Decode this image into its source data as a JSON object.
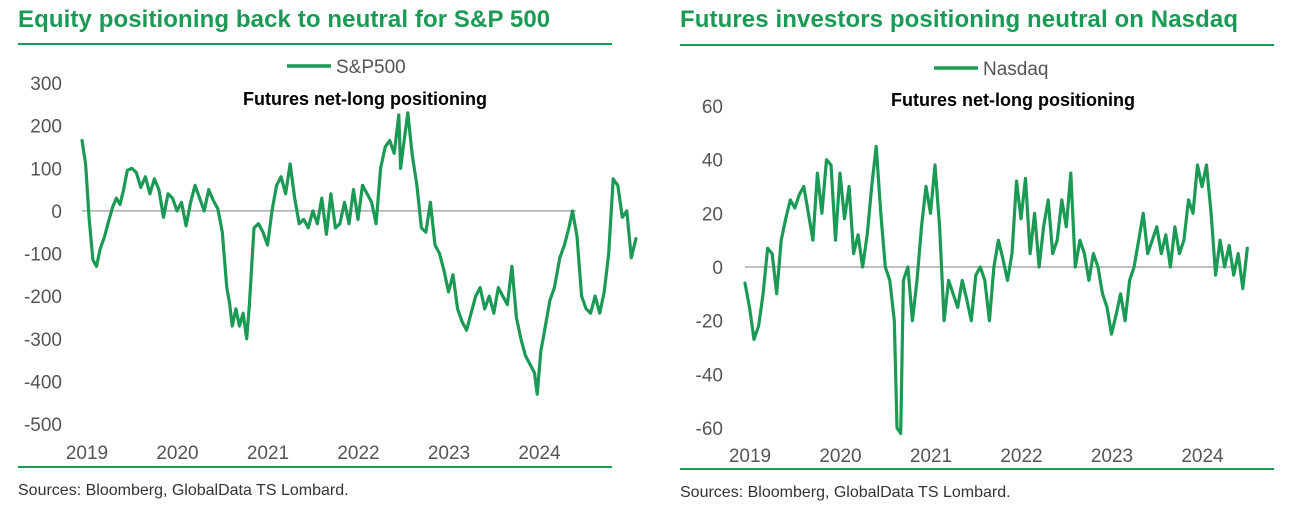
{
  "chart_data": [
    {
      "type": "line",
      "title": "Equity positioning back to neutral for S&P 500",
      "subtitle": "Futures net-long positioning",
      "legend": "top-center",
      "series": [
        {
          "name": "S&P500",
          "color": "#1b9a55",
          "points": [
            [
              2019.0,
              165
            ],
            [
              2019.04,
              110
            ],
            [
              2019.08,
              -20
            ],
            [
              2019.12,
              -115
            ],
            [
              2019.16,
              -130
            ],
            [
              2019.2,
              -90
            ],
            [
              2019.25,
              -60
            ],
            [
              2019.3,
              -20
            ],
            [
              2019.34,
              10
            ],
            [
              2019.38,
              30
            ],
            [
              2019.42,
              15
            ],
            [
              2019.46,
              50
            ],
            [
              2019.5,
              95
            ],
            [
              2019.55,
              100
            ],
            [
              2019.6,
              90
            ],
            [
              2019.65,
              55
            ],
            [
              2019.7,
              80
            ],
            [
              2019.75,
              40
            ],
            [
              2019.8,
              75
            ],
            [
              2019.85,
              50
            ],
            [
              2019.9,
              -15
            ],
            [
              2019.95,
              40
            ],
            [
              2020.0,
              30
            ],
            [
              2020.05,
              0
            ],
            [
              2020.1,
              20
            ],
            [
              2020.15,
              -35
            ],
            [
              2020.2,
              20
            ],
            [
              2020.25,
              60
            ],
            [
              2020.3,
              30
            ],
            [
              2020.35,
              0
            ],
            [
              2020.4,
              50
            ],
            [
              2020.45,
              25
            ],
            [
              2020.5,
              5
            ],
            [
              2020.55,
              -50
            ],
            [
              2020.6,
              -180
            ],
            [
              2020.63,
              -215
            ],
            [
              2020.66,
              -270
            ],
            [
              2020.7,
              -230
            ],
            [
              2020.74,
              -270
            ],
            [
              2020.78,
              -240
            ],
            [
              2020.82,
              -300
            ],
            [
              2020.85,
              -220
            ],
            [
              2020.9,
              -40
            ],
            [
              2020.95,
              -30
            ],
            [
              2021.0,
              -50
            ],
            [
              2021.05,
              -80
            ],
            [
              2021.1,
              0
            ],
            [
              2021.15,
              60
            ],
            [
              2021.2,
              80
            ],
            [
              2021.25,
              40
            ],
            [
              2021.3,
              110
            ],
            [
              2021.35,
              30
            ],
            [
              2021.4,
              -30
            ],
            [
              2021.45,
              -20
            ],
            [
              2021.5,
              -40
            ],
            [
              2021.55,
              0
            ],
            [
              2021.6,
              -30
            ],
            [
              2021.65,
              30
            ],
            [
              2021.7,
              -55
            ],
            [
              2021.75,
              40
            ],
            [
              2021.8,
              -40
            ],
            [
              2021.85,
              -30
            ],
            [
              2021.9,
              20
            ],
            [
              2021.95,
              -30
            ],
            [
              2022.0,
              50
            ],
            [
              2022.05,
              -20
            ],
            [
              2022.1,
              60
            ],
            [
              2022.15,
              40
            ],
            [
              2022.2,
              20
            ],
            [
              2022.25,
              -30
            ],
            [
              2022.3,
              100
            ],
            [
              2022.35,
              150
            ],
            [
              2022.4,
              165
            ],
            [
              2022.45,
              135
            ],
            [
              2022.5,
              225
            ],
            [
              2022.52,
              100
            ],
            [
              2022.55,
              150
            ],
            [
              2022.6,
              230
            ],
            [
              2022.65,
              130
            ],
            [
              2022.7,
              60
            ],
            [
              2022.75,
              -40
            ],
            [
              2022.8,
              -50
            ],
            [
              2022.85,
              20
            ],
            [
              2022.9,
              -80
            ],
            [
              2022.95,
              -100
            ],
            [
              2023.0,
              -140
            ],
            [
              2023.05,
              -190
            ],
            [
              2023.1,
              -150
            ],
            [
              2023.15,
              -230
            ],
            [
              2023.2,
              -260
            ],
            [
              2023.25,
              -280
            ],
            [
              2023.3,
              -240
            ],
            [
              2023.35,
              -200
            ],
            [
              2023.4,
              -180
            ],
            [
              2023.45,
              -230
            ],
            [
              2023.5,
              -200
            ],
            [
              2023.55,
              -240
            ],
            [
              2023.6,
              -180
            ],
            [
              2023.65,
              -200
            ],
            [
              2023.7,
              -220
            ],
            [
              2023.75,
              -130
            ],
            [
              2023.8,
              -250
            ],
            [
              2023.85,
              -300
            ],
            [
              2023.9,
              -340
            ],
            [
              2023.95,
              -360
            ],
            [
              2024.0,
              -380
            ],
            [
              2024.03,
              -430
            ],
            [
              2024.07,
              -330
            ],
            [
              2024.12,
              -270
            ],
            [
              2024.17,
              -210
            ],
            [
              2024.22,
              -180
            ],
            [
              2024.28,
              -110
            ],
            [
              2024.33,
              -80
            ],
            [
              2024.38,
              -40
            ],
            [
              2024.42,
              0
            ],
            [
              2024.47,
              -60
            ],
            [
              2024.52,
              -200
            ],
            [
              2024.57,
              -230
            ],
            [
              2024.62,
              -240
            ],
            [
              2024.67,
              -200
            ],
            [
              2024.72,
              -240
            ],
            [
              2024.77,
              -190
            ],
            [
              2024.82,
              -100
            ],
            [
              2024.87,
              75
            ],
            [
              2024.92,
              60
            ],
            [
              2024.97,
              -15
            ],
            [
              2025.02,
              0
            ],
            [
              2025.07,
              -110
            ],
            [
              2025.12,
              -65
            ]
          ]
        }
      ],
      "x_ticks": [
        "2019",
        "2020",
        "2021",
        "2022",
        "2023",
        "2024"
      ],
      "y_ticks": [
        300,
        200,
        100,
        0,
        -100,
        -200,
        -300,
        -400,
        -500
      ],
      "ylim": [
        -500,
        300
      ],
      "source": "Sources: Bloomberg, GlobalData TS Lombard."
    },
    {
      "type": "line",
      "title": "Futures investors positioning neutral on Nasdaq",
      "subtitle": "Futures net-long positioning",
      "legend": "top-center",
      "series": [
        {
          "name": "Nasdaq",
          "color": "#1b9a55",
          "points": [
            [
              2019.0,
              -6
            ],
            [
              2019.05,
              -15
            ],
            [
              2019.1,
              -27
            ],
            [
              2019.15,
              -22
            ],
            [
              2019.2,
              -10
            ],
            [
              2019.25,
              7
            ],
            [
              2019.3,
              5
            ],
            [
              2019.35,
              -10
            ],
            [
              2019.4,
              10
            ],
            [
              2019.45,
              18
            ],
            [
              2019.5,
              25
            ],
            [
              2019.55,
              22
            ],
            [
              2019.6,
              27
            ],
            [
              2019.65,
              30
            ],
            [
              2019.7,
              20
            ],
            [
              2019.75,
              10
            ],
            [
              2019.8,
              35
            ],
            [
              2019.85,
              20
            ],
            [
              2019.9,
              40
            ],
            [
              2019.95,
              38
            ],
            [
              2020.0,
              10
            ],
            [
              2020.05,
              35
            ],
            [
              2020.1,
              18
            ],
            [
              2020.15,
              30
            ],
            [
              2020.2,
              5
            ],
            [
              2020.25,
              12
            ],
            [
              2020.3,
              0
            ],
            [
              2020.35,
              12
            ],
            [
              2020.4,
              30
            ],
            [
              2020.45,
              45
            ],
            [
              2020.5,
              20
            ],
            [
              2020.55,
              0
            ],
            [
              2020.6,
              -5
            ],
            [
              2020.65,
              -20
            ],
            [
              2020.68,
              -60
            ],
            [
              2020.72,
              -62
            ],
            [
              2020.75,
              -5
            ],
            [
              2020.8,
              0
            ],
            [
              2020.85,
              -20
            ],
            [
              2020.9,
              -5
            ],
            [
              2020.95,
              15
            ],
            [
              2021.0,
              30
            ],
            [
              2021.05,
              20
            ],
            [
              2021.1,
              38
            ],
            [
              2021.15,
              15
            ],
            [
              2021.2,
              -20
            ],
            [
              2021.25,
              -5
            ],
            [
              2021.3,
              -10
            ],
            [
              2021.35,
              -15
            ],
            [
              2021.4,
              -5
            ],
            [
              2021.45,
              -12
            ],
            [
              2021.5,
              -20
            ],
            [
              2021.55,
              -3
            ],
            [
              2021.6,
              0
            ],
            [
              2021.65,
              -5
            ],
            [
              2021.7,
              -20
            ],
            [
              2021.75,
              0
            ],
            [
              2021.8,
              10
            ],
            [
              2021.85,
              3
            ],
            [
              2021.9,
              -5
            ],
            [
              2021.95,
              5
            ],
            [
              2022.0,
              32
            ],
            [
              2022.05,
              18
            ],
            [
              2022.1,
              33
            ],
            [
              2022.15,
              5
            ],
            [
              2022.2,
              20
            ],
            [
              2022.25,
              0
            ],
            [
              2022.3,
              15
            ],
            [
              2022.35,
              25
            ],
            [
              2022.4,
              5
            ],
            [
              2022.45,
              10
            ],
            [
              2022.5,
              25
            ],
            [
              2022.55,
              15
            ],
            [
              2022.6,
              35
            ],
            [
              2022.65,
              0
            ],
            [
              2022.7,
              10
            ],
            [
              2022.75,
              5
            ],
            [
              2022.8,
              -5
            ],
            [
              2022.85,
              5
            ],
            [
              2022.9,
              0
            ],
            [
              2022.95,
              -10
            ],
            [
              2023.0,
              -15
            ],
            [
              2023.05,
              -25
            ],
            [
              2023.1,
              -18
            ],
            [
              2023.15,
              -10
            ],
            [
              2023.2,
              -20
            ],
            [
              2023.25,
              -5
            ],
            [
              2023.3,
              0
            ],
            [
              2023.35,
              10
            ],
            [
              2023.4,
              20
            ],
            [
              2023.45,
              5
            ],
            [
              2023.5,
              10
            ],
            [
              2023.55,
              15
            ],
            [
              2023.6,
              5
            ],
            [
              2023.65,
              12
            ],
            [
              2023.7,
              0
            ],
            [
              2023.75,
              15
            ],
            [
              2023.8,
              5
            ],
            [
              2023.85,
              10
            ],
            [
              2023.9,
              25
            ],
            [
              2023.95,
              20
            ],
            [
              2024.0,
              38
            ],
            [
              2024.05,
              30
            ],
            [
              2024.1,
              38
            ],
            [
              2024.15,
              20
            ],
            [
              2024.2,
              -3
            ],
            [
              2024.25,
              10
            ],
            [
              2024.3,
              0
            ],
            [
              2024.35,
              8
            ],
            [
              2024.4,
              -3
            ],
            [
              2024.45,
              5
            ],
            [
              2024.5,
              -8
            ],
            [
              2024.55,
              7
            ]
          ]
        }
      ],
      "x_ticks": [
        "2019",
        "2020",
        "2021",
        "2022",
        "2023",
        "2024"
      ],
      "y_ticks": [
        60,
        40,
        20,
        0,
        -20,
        -40,
        -60
      ],
      "ylim": [
        -60,
        60
      ],
      "source": "Sources: Bloomberg, GlobalData TS Lombard."
    }
  ]
}
